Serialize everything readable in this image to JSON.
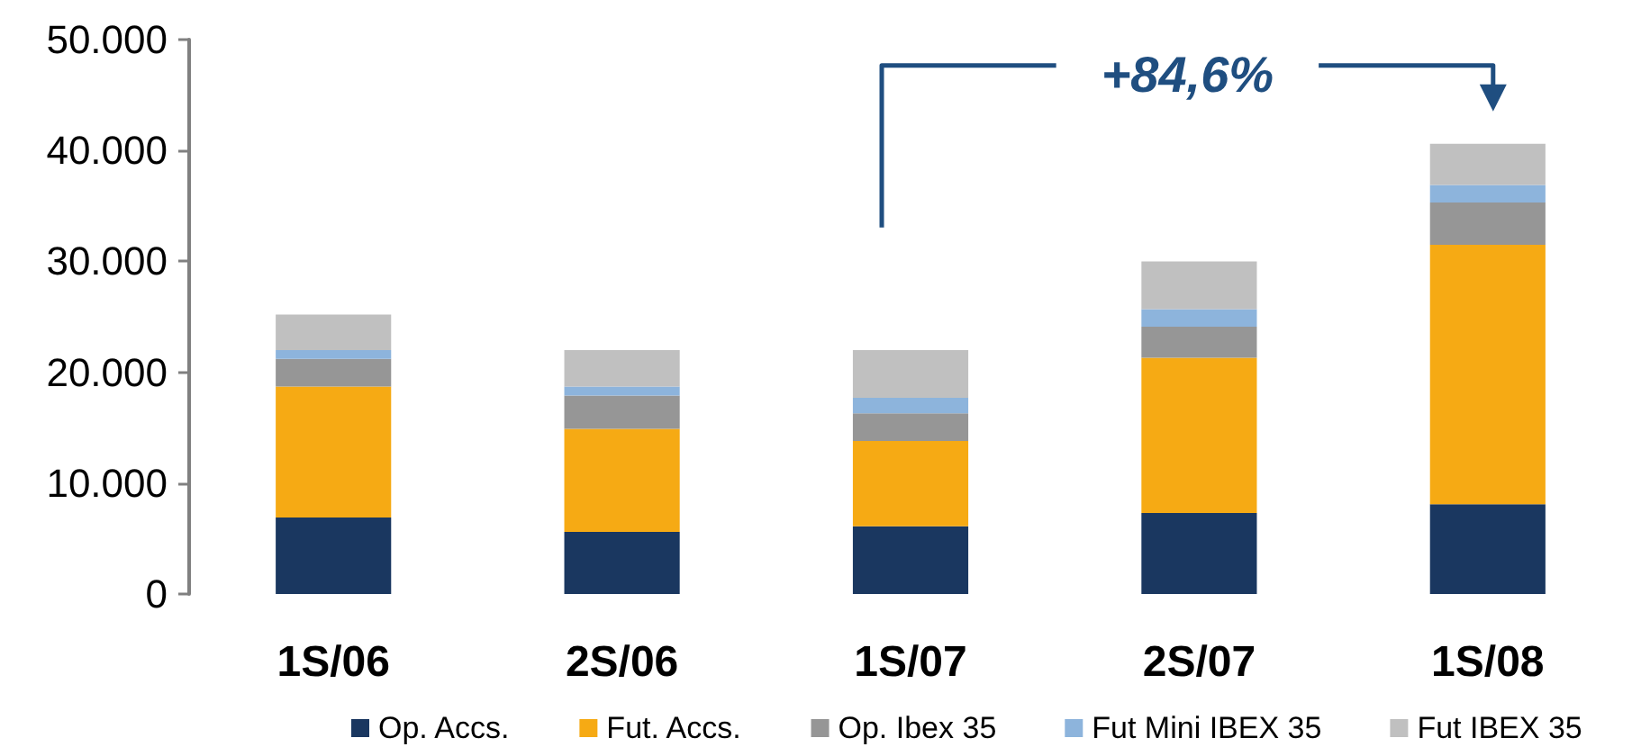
{
  "chart_data": {
    "type": "bar",
    "stacked": true,
    "categories": [
      "1S/06",
      "2S/06",
      "1S/07",
      "2S/07",
      "1S/08"
    ],
    "series": [
      {
        "name": "Op. Accs.",
        "color": "#1a3760",
        "values": [
          6900,
          5600,
          6100,
          7300,
          8100
        ]
      },
      {
        "name": "Fut. Accs.",
        "color": "#f6aa14",
        "values": [
          11800,
          9300,
          7700,
          14000,
          23400
        ]
      },
      {
        "name": "Op. Ibex 35",
        "color": "#969696",
        "values": [
          2500,
          3000,
          2500,
          2800,
          3800
        ]
      },
      {
        "name": "Fut Mini IBEX 35",
        "color": "#8db4dc",
        "values": [
          800,
          800,
          1400,
          1600,
          1600
        ]
      },
      {
        "name": "Fut IBEX 35",
        "color": "#c0c0c0",
        "values": [
          3200,
          3300,
          4300,
          4300,
          3700
        ]
      }
    ],
    "ylim": [
      0,
      50000
    ],
    "yticks": [
      0,
      {
        "value": 10000,
        "label": "10.000"
      },
      {
        "value": 20000,
        "label": "20.000"
      },
      {
        "value": 30000,
        "label": "30.000"
      },
      {
        "value": 40000,
        "label": "40.000"
      },
      {
        "value": 50000,
        "label": "50.000"
      }
    ],
    "legend": "bottom",
    "grid": false,
    "annotations": [
      "+84,6%"
    ]
  }
}
